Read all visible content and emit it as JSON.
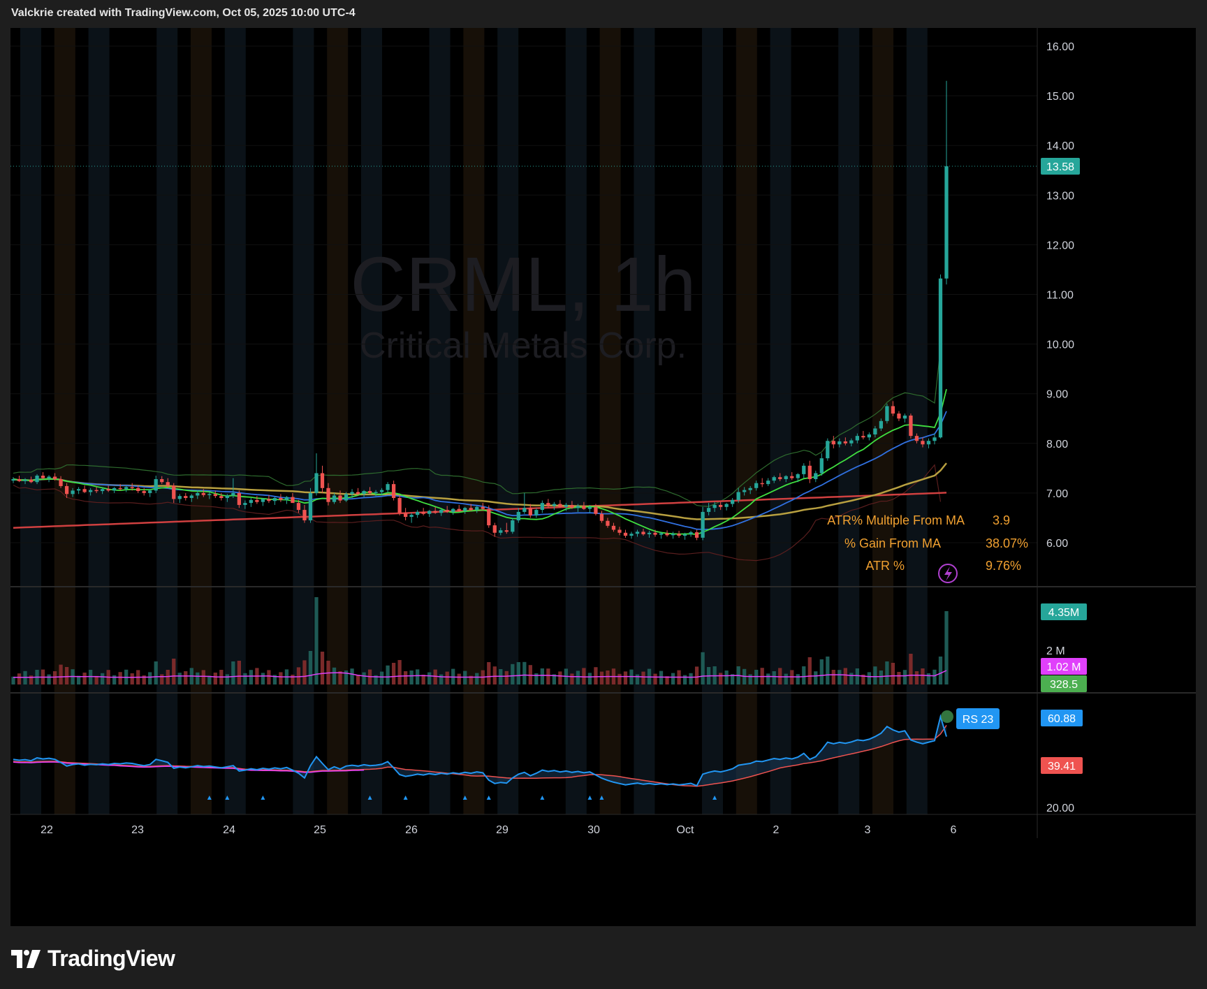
{
  "header": {
    "caption": "Valckrie created with TradingView.com, Oct 05, 2025 10:00 UTC-4"
  },
  "watermark": {
    "symbol": "CRML, 1h",
    "company": "Critical Metals Corp."
  },
  "price_axis": {
    "ticks": [
      "16.00",
      "15.00",
      "14.00",
      "13.00",
      "12.00",
      "11.00",
      "10.00",
      "9.00",
      "8.00",
      "7.00",
      "6.00"
    ],
    "last_price_label": "13.58",
    "last_price_color": "#26a69a"
  },
  "stats_table": {
    "rows": [
      {
        "label": "ATR% Multiple From MA",
        "value": "3.9"
      },
      {
        "label": "% Gain From MA",
        "value": "38.07%"
      },
      {
        "label": "ATR %",
        "value": "9.76%"
      }
    ],
    "color": "#f0a030"
  },
  "volume_axis": {
    "tick": "2 M",
    "badges": [
      {
        "text": "4.35M",
        "color": "#26a69a"
      },
      {
        "text": "1.02 M",
        "color": "#e040fb"
      },
      {
        "text": "328.5",
        "color": "#4caf50"
      }
    ]
  },
  "rs_panel": {
    "label": "RS 23",
    "label_color": "#2196f3",
    "tick": "20.00",
    "badges": [
      {
        "text": "60.88",
        "color": "#2196f3"
      },
      {
        "text": "39.41",
        "color": "#ef5350"
      }
    ]
  },
  "time_axis": {
    "labels": [
      "22",
      "23",
      "24",
      "25",
      "26",
      "29",
      "30",
      "Oct",
      "2",
      "3",
      "6"
    ]
  },
  "footer": {
    "brand": "TradingView"
  },
  "chart_data": {
    "type": "candlestick",
    "symbol": "CRML",
    "interval": "1h",
    "ylim": [
      5.6,
      16.4
    ],
    "x_labels": [
      "22",
      "23",
      "24",
      "25",
      "26",
      "29",
      "30",
      "Oct",
      "2",
      "3",
      "6"
    ],
    "last_price": 13.58,
    "candles": [
      [
        7.25,
        7.32,
        7.2,
        7.28
      ],
      [
        7.28,
        7.35,
        7.22,
        7.24
      ],
      [
        7.24,
        7.3,
        7.18,
        7.27
      ],
      [
        7.27,
        7.33,
        7.2,
        7.22
      ],
      [
        7.22,
        7.38,
        7.18,
        7.35
      ],
      [
        7.35,
        7.42,
        7.28,
        7.3
      ],
      [
        7.3,
        7.36,
        7.22,
        7.33
      ],
      [
        7.33,
        7.4,
        7.25,
        7.28
      ],
      [
        7.28,
        7.34,
        7.1,
        7.14
      ],
      [
        7.14,
        7.2,
        6.9,
        6.98
      ],
      [
        6.98,
        7.1,
        6.92,
        7.05
      ],
      [
        7.05,
        7.12,
        6.98,
        7.08
      ],
      [
        7.08,
        7.15,
        7.0,
        7.02
      ],
      [
        7.02,
        7.1,
        6.95,
        7.06
      ],
      [
        7.06,
        7.12,
        7.0,
        7.04
      ],
      [
        7.04,
        7.1,
        6.98,
        7.08
      ],
      [
        7.08,
        7.15,
        7.02,
        7.05
      ],
      [
        7.05,
        7.12,
        7.0,
        7.1
      ],
      [
        7.1,
        7.18,
        7.05,
        7.08
      ],
      [
        7.08,
        7.14,
        7.02,
        7.12
      ],
      [
        7.12,
        7.2,
        7.05,
        7.1
      ],
      [
        7.1,
        7.16,
        7.0,
        7.04
      ],
      [
        7.04,
        7.1,
        6.95,
        7.0
      ],
      [
        7.0,
        7.08,
        6.92,
        7.05
      ],
      [
        7.05,
        7.35,
        7.0,
        7.28
      ],
      [
        7.28,
        7.34,
        7.18,
        7.22
      ],
      [
        7.22,
        7.3,
        7.1,
        7.15
      ],
      [
        7.15,
        7.2,
        6.8,
        6.88
      ],
      [
        6.88,
        6.98,
        6.8,
        6.94
      ],
      [
        6.94,
        7.0,
        6.85,
        6.9
      ],
      [
        6.9,
        6.98,
        6.82,
        6.95
      ],
      [
        6.95,
        7.05,
        6.88,
        7.0
      ],
      [
        7.0,
        7.08,
        6.92,
        6.96
      ],
      [
        6.96,
        7.02,
        6.88,
        6.98
      ],
      [
        6.98,
        7.05,
        6.9,
        6.94
      ],
      [
        6.94,
        7.0,
        6.85,
        6.9
      ],
      [
        6.9,
        6.98,
        6.82,
        6.95
      ],
      [
        6.95,
        7.3,
        6.9,
        7.0
      ],
      [
        7.0,
        7.05,
        6.7,
        6.76
      ],
      [
        6.76,
        6.85,
        6.68,
        6.8
      ],
      [
        6.8,
        6.9,
        6.72,
        6.86
      ],
      [
        6.86,
        6.94,
        6.78,
        6.82
      ],
      [
        6.82,
        6.9,
        6.74,
        6.88
      ],
      [
        6.88,
        6.96,
        6.8,
        6.84
      ],
      [
        6.84,
        6.92,
        6.76,
        6.9
      ],
      [
        6.9,
        6.98,
        6.82,
        6.86
      ],
      [
        6.86,
        6.94,
        6.78,
        6.92
      ],
      [
        6.92,
        7.0,
        6.85,
        6.8
      ],
      [
        6.8,
        6.86,
        6.6,
        6.66
      ],
      [
        6.66,
        6.76,
        6.4,
        6.45
      ],
      [
        6.45,
        7.1,
        6.4,
        7.0
      ],
      [
        7.0,
        7.8,
        6.95,
        7.4
      ],
      [
        7.4,
        7.55,
        7.0,
        7.1
      ],
      [
        7.1,
        7.2,
        6.75,
        6.82
      ],
      [
        6.82,
        7.0,
        6.78,
        6.95
      ],
      [
        6.95,
        7.05,
        6.8,
        6.85
      ],
      [
        6.85,
        7.02,
        6.82,
        6.98
      ],
      [
        6.98,
        7.08,
        6.9,
        7.02
      ],
      [
        7.02,
        7.1,
        6.95,
        6.98
      ],
      [
        6.98,
        7.06,
        6.92,
        7.04
      ],
      [
        7.04,
        7.12,
        6.98,
        7.0
      ],
      [
        7.0,
        7.06,
        6.94,
        7.02
      ],
      [
        7.02,
        7.1,
        6.96,
        7.06
      ],
      [
        7.06,
        7.22,
        7.0,
        7.18
      ],
      [
        7.18,
        7.25,
        6.85,
        6.9
      ],
      [
        6.9,
        6.95,
        6.55,
        6.6
      ],
      [
        6.6,
        6.7,
        6.45,
        6.52
      ],
      [
        6.52,
        6.6,
        6.4,
        6.56
      ],
      [
        6.56,
        6.66,
        6.5,
        6.62
      ],
      [
        6.62,
        6.7,
        6.55,
        6.58
      ],
      [
        6.58,
        6.66,
        6.52,
        6.64
      ],
      [
        6.64,
        6.72,
        6.58,
        6.6
      ],
      [
        6.6,
        6.68,
        6.54,
        6.66
      ],
      [
        6.66,
        6.74,
        6.6,
        6.62
      ],
      [
        6.62,
        6.7,
        6.56,
        6.68
      ],
      [
        6.68,
        6.76,
        6.62,
        6.64
      ],
      [
        6.64,
        6.72,
        6.58,
        6.7
      ],
      [
        6.7,
        6.78,
        6.64,
        6.66
      ],
      [
        6.66,
        6.74,
        6.6,
        6.72
      ],
      [
        6.72,
        6.8,
        6.66,
        6.68
      ],
      [
        6.68,
        6.75,
        6.3,
        6.35
      ],
      [
        6.35,
        6.4,
        6.12,
        6.2
      ],
      [
        6.2,
        6.3,
        6.15,
        6.25
      ],
      [
        6.25,
        6.4,
        6.18,
        6.22
      ],
      [
        6.22,
        6.5,
        6.18,
        6.45
      ],
      [
        6.45,
        6.7,
        6.4,
        6.62
      ],
      [
        6.62,
        7.0,
        6.58,
        6.7
      ],
      [
        6.7,
        6.78,
        6.5,
        6.55
      ],
      [
        6.55,
        6.7,
        6.5,
        6.66
      ],
      [
        6.66,
        6.85,
        6.6,
        6.8
      ],
      [
        6.8,
        6.88,
        6.7,
        6.74
      ],
      [
        6.74,
        6.82,
        6.66,
        6.78
      ],
      [
        6.78,
        6.86,
        6.7,
        6.72
      ],
      [
        6.72,
        6.8,
        6.64,
        6.76
      ],
      [
        6.76,
        6.84,
        6.68,
        6.7
      ],
      [
        6.7,
        6.78,
        6.62,
        6.74
      ],
      [
        6.74,
        6.82,
        6.66,
        6.68
      ],
      [
        6.68,
        6.76,
        6.6,
        6.72
      ],
      [
        6.72,
        6.78,
        6.55,
        6.58
      ],
      [
        6.58,
        6.64,
        6.4,
        6.44
      ],
      [
        6.44,
        6.5,
        6.3,
        6.34
      ],
      [
        6.34,
        6.4,
        6.22,
        6.26
      ],
      [
        6.26,
        6.32,
        6.15,
        6.2
      ],
      [
        6.2,
        6.26,
        6.1,
        6.14
      ],
      [
        6.14,
        6.22,
        6.08,
        6.18
      ],
      [
        6.18,
        6.26,
        6.12,
        6.22
      ],
      [
        6.22,
        6.28,
        6.14,
        6.17
      ],
      [
        6.17,
        6.24,
        6.1,
        6.2
      ],
      [
        6.2,
        6.26,
        6.12,
        6.16
      ],
      [
        6.16,
        6.22,
        6.08,
        6.19
      ],
      [
        6.19,
        6.25,
        6.12,
        6.15
      ],
      [
        6.15,
        6.22,
        6.08,
        6.18
      ],
      [
        6.18,
        6.24,
        6.1,
        6.14
      ],
      [
        6.14,
        6.2,
        6.06,
        6.17
      ],
      [
        6.17,
        6.24,
        6.12,
        6.21
      ],
      [
        6.21,
        6.26,
        6.05,
        6.1
      ],
      [
        6.1,
        6.72,
        6.05,
        6.62
      ],
      [
        6.62,
        6.8,
        6.55,
        6.7
      ],
      [
        6.7,
        6.82,
        6.62,
        6.76
      ],
      [
        6.76,
        6.82,
        6.66,
        6.72
      ],
      [
        6.72,
        6.8,
        6.65,
        6.78
      ],
      [
        6.78,
        6.9,
        6.72,
        6.86
      ],
      [
        6.86,
        7.1,
        6.8,
        7.02
      ],
      [
        7.02,
        7.12,
        6.95,
        7.06
      ],
      [
        7.06,
        7.14,
        6.98,
        7.1
      ],
      [
        7.1,
        7.25,
        7.05,
        7.2
      ],
      [
        7.2,
        7.3,
        7.12,
        7.18
      ],
      [
        7.18,
        7.3,
        7.14,
        7.25
      ],
      [
        7.25,
        7.35,
        7.2,
        7.32
      ],
      [
        7.32,
        7.4,
        7.24,
        7.28
      ],
      [
        7.28,
        7.36,
        7.22,
        7.34
      ],
      [
        7.34,
        7.42,
        7.26,
        7.3
      ],
      [
        7.3,
        7.4,
        7.22,
        7.38
      ],
      [
        7.38,
        7.6,
        7.3,
        7.55
      ],
      [
        7.55,
        7.65,
        7.2,
        7.28
      ],
      [
        7.28,
        7.45,
        7.22,
        7.4
      ],
      [
        7.4,
        7.8,
        7.35,
        7.7
      ],
      [
        7.7,
        8.1,
        7.65,
        8.05
      ],
      [
        8.05,
        8.15,
        7.9,
        7.98
      ],
      [
        7.98,
        8.1,
        7.92,
        8.04
      ],
      [
        8.04,
        8.12,
        7.96,
        8.0
      ],
      [
        8.0,
        8.1,
        7.94,
        8.06
      ],
      [
        8.06,
        8.2,
        8.0,
        8.15
      ],
      [
        8.15,
        8.25,
        8.08,
        8.12
      ],
      [
        8.12,
        8.22,
        8.06,
        8.18
      ],
      [
        8.18,
        8.35,
        8.12,
        8.3
      ],
      [
        8.3,
        8.5,
        8.25,
        8.45
      ],
      [
        8.45,
        8.8,
        8.4,
        8.75
      ],
      [
        8.75,
        8.85,
        8.55,
        8.6
      ],
      [
        8.6,
        8.65,
        8.45,
        8.5
      ],
      [
        8.5,
        8.6,
        8.42,
        8.56
      ],
      [
        8.56,
        8.6,
        8.1,
        8.15
      ],
      [
        8.15,
        8.2,
        8.0,
        8.05
      ],
      [
        8.05,
        8.12,
        7.92,
        7.98
      ],
      [
        7.98,
        8.1,
        7.9,
        8.05
      ],
      [
        8.05,
        8.2,
        7.98,
        8.12
      ],
      [
        8.12,
        11.4,
        8.1,
        11.32
      ],
      [
        11.32,
        15.3,
        11.2,
        13.58
      ]
    ]
  }
}
